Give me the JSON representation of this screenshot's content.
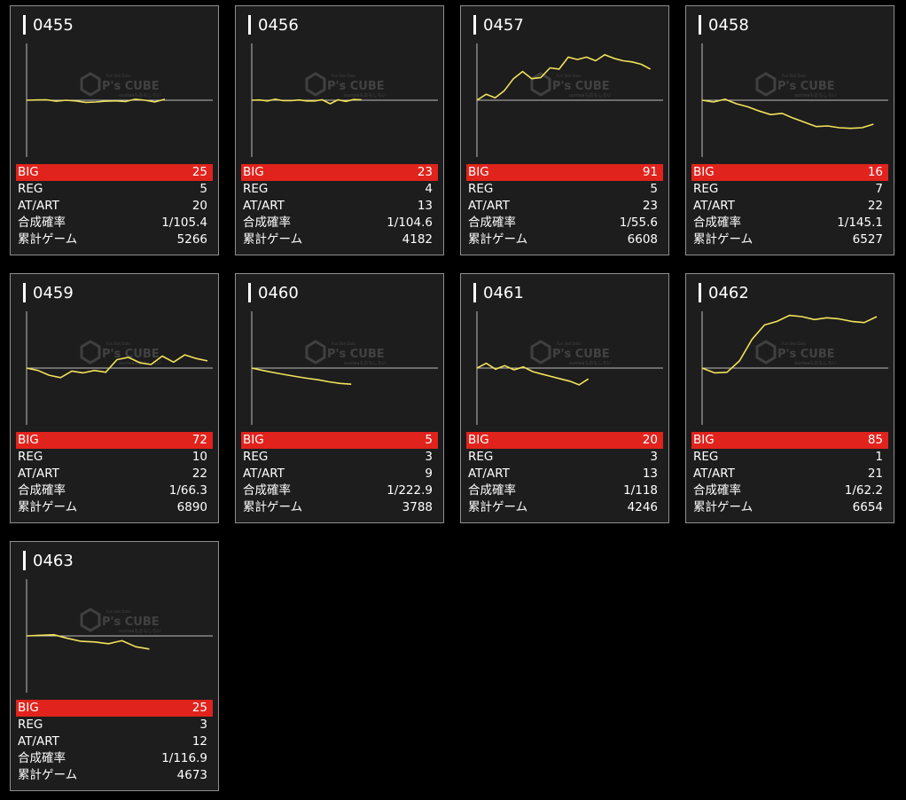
{
  "labels": {
    "big": "BIG",
    "reg": "REG",
    "at_art": "AT/ART",
    "prob": "合成確率",
    "games": "累計ゲーム"
  },
  "watermark": {
    "brand": "P's CUBE",
    "tagline": "ounteaもおもしろい",
    "topline": "Fun Slot Data"
  },
  "colors": {
    "card_bg": "#1d1d1d",
    "card_border": "#8e8e8e",
    "big_row": "#e0231c",
    "line": "#f2e35a",
    "axis": "#bdbdbd"
  },
  "machines": [
    {
      "id": "0455",
      "big": "25",
      "reg": "5",
      "at_art": "20",
      "prob": "1/105.4",
      "games": "5266",
      "graph": [
        0,
        20,
        40,
        -80,
        0,
        -60,
        -180,
        -150,
        -80,
        -50,
        -110,
        80,
        0,
        -140,
        80
      ]
    },
    {
      "id": "0456",
      "big": "23",
      "reg": "4",
      "at_art": "13",
      "prob": "1/104.6",
      "games": "4182",
      "graph": [
        0,
        20,
        -60,
        80,
        -40,
        -40,
        20,
        -60,
        -60,
        40,
        -300,
        40,
        -100,
        60,
        40
      ]
    },
    {
      "id": "0457",
      "big": "91",
      "reg": "5",
      "at_art": "23",
      "prob": "1/55.6",
      "games": "6608",
      "graph": [
        0,
        500,
        200,
        800,
        1800,
        2400,
        1800,
        1900,
        2700,
        2600,
        3600,
        3400,
        3600,
        3300,
        3800,
        3500,
        3300,
        3200,
        3000,
        2600
      ]
    },
    {
      "id": "0458",
      "big": "16",
      "reg": "7",
      "at_art": "22",
      "prob": "1/145.1",
      "games": "6527",
      "graph": [
        0,
        -150,
        80,
        -300,
        -550,
        -900,
        -1200,
        -1100,
        -1500,
        -1850,
        -2200,
        -2150,
        -2300,
        -2350,
        -2300,
        -2000
      ]
    },
    {
      "id": "0459",
      "big": "72",
      "reg": "10",
      "at_art": "22",
      "prob": "1/66.3",
      "games": "6890",
      "graph": [
        0,
        -200,
        -600,
        -800,
        -250,
        -400,
        -200,
        -350,
        700,
        900,
        450,
        300,
        1000,
        500,
        1100,
        800,
        600
      ]
    },
    {
      "id": "0460",
      "big": "5",
      "reg": "3",
      "at_art": "9",
      "prob": "1/222.9",
      "games": "3788",
      "graph": [
        0,
        -200,
        -380,
        -550,
        -700,
        -850,
        -980,
        -1150,
        -1280,
        -1350
      ]
    },
    {
      "id": "0461",
      "big": "20",
      "reg": "3",
      "at_art": "13",
      "prob": "1/118",
      "games": "4246",
      "graph": [
        0,
        400,
        -100,
        200,
        -150,
        100,
        -300,
        -500,
        -700,
        -900,
        -1100,
        -1400,
        -900
      ]
    },
    {
      "id": "0462",
      "big": "85",
      "reg": "1",
      "at_art": "21",
      "prob": "1/62.2",
      "games": "6654",
      "graph": [
        0,
        -400,
        -350,
        600,
        2400,
        3600,
        3900,
        4400,
        4300,
        4050,
        4200,
        4100,
        3900,
        3800,
        4300
      ]
    },
    {
      "id": "0463",
      "big": "25",
      "reg": "3",
      "at_art": "12",
      "prob": "1/116.9",
      "games": "4673",
      "graph": [
        0,
        50,
        100,
        -200,
        -450,
        -500,
        -650,
        -400,
        -900,
        -1100
      ]
    }
  ]
}
